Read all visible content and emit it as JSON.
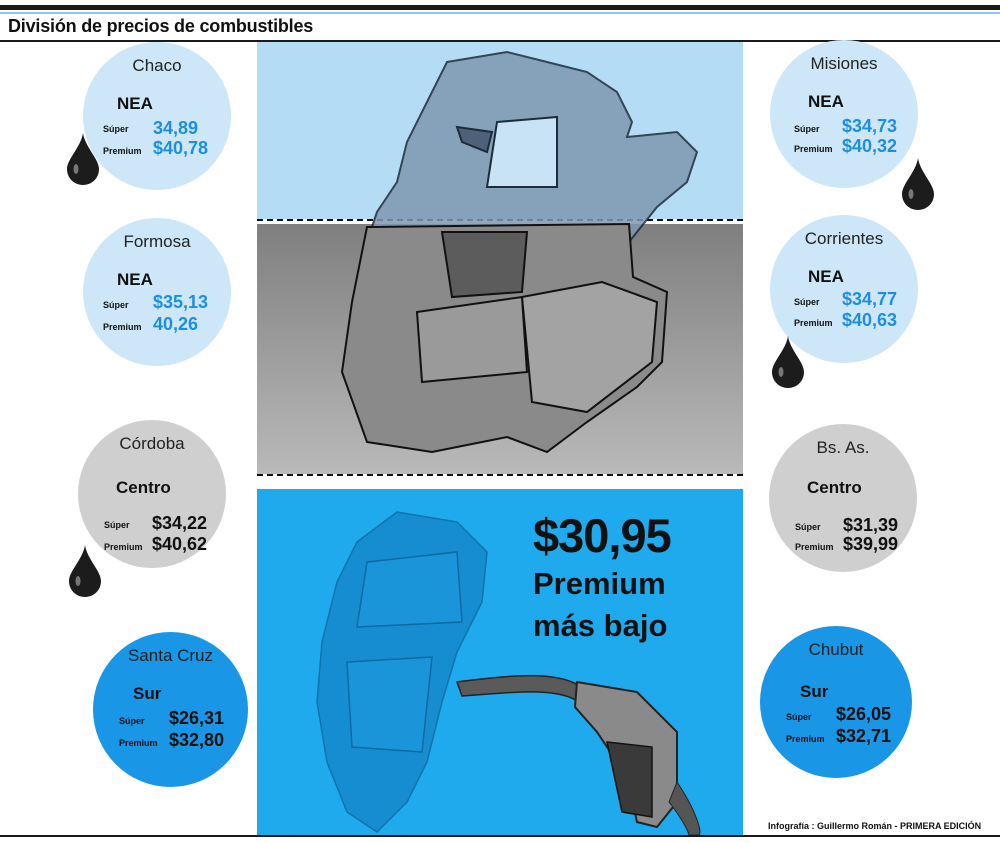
{
  "title": "División de precios de combustibles",
  "lowest": {
    "price": "$30,95",
    "line1": "Premium",
    "line2": "más bajo"
  },
  "credit": "Infografía : Guillermo Román - PRIMERA EDICIÓN",
  "provinces": {
    "chaco": {
      "name": "Chaco",
      "region": "NEA",
      "super_label": "Súper",
      "super": "34,89",
      "premium_label": "Premium",
      "premium": "$40,78"
    },
    "formosa": {
      "name": "Formosa",
      "region": "NEA",
      "super_label": "Súper",
      "super": "$35,13",
      "premium_label": "Premium",
      "premium": "40,26"
    },
    "cordoba": {
      "name": "Córdoba",
      "region": "Centro",
      "super_label": "Súper",
      "super": "$34,22",
      "premium_label": "Premium",
      "premium": "$40,62"
    },
    "santa_cruz": {
      "name": "Santa Cruz",
      "region": "Sur",
      "super_label": "Súper",
      "super": "$26,31",
      "premium_label": "Premium",
      "premium": "$32,80"
    },
    "misiones": {
      "name": "Misiones",
      "region": "NEA",
      "super_label": "Súper",
      "super": "$34,73",
      "premium_label": "Premium",
      "premium": "$40,32"
    },
    "corrientes": {
      "name": "Corrientes",
      "region": "NEA",
      "super_label": "Súper",
      "super": "$34,77",
      "premium_label": "Premium",
      "premium": "$40,63"
    },
    "bs_as": {
      "name": "Bs. As.",
      "region": "Centro",
      "super_label": "Súper",
      "super": "$31,39",
      "premium_label": "Premium",
      "premium": "$39,99"
    },
    "chubut": {
      "name": "Chubut",
      "region": "Sur",
      "super_label": "Súper",
      "super": "$26,05",
      "premium_label": "Premium",
      "premium": "$32,71"
    }
  },
  "colors": {
    "nea": "#b4dcf5",
    "centro": "#9d9d9d",
    "sur": "#1faaee",
    "value_blue": "#1e8fe0"
  }
}
